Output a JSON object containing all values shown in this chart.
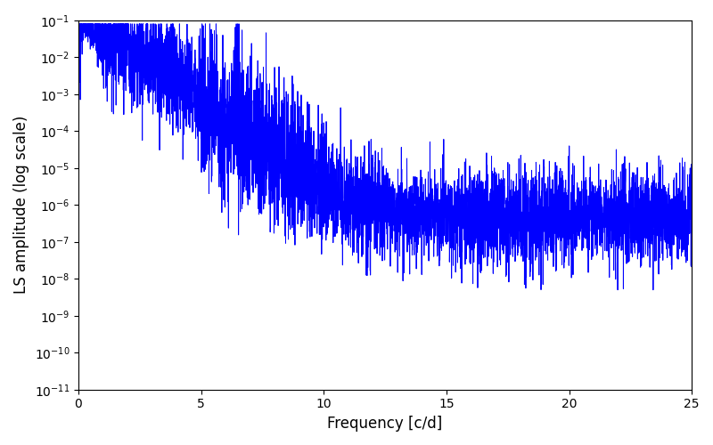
{
  "title": "",
  "xlabel": "Frequency [c/d]",
  "ylabel": "LS amplitude (log scale)",
  "line_color": "#0000ff",
  "line_width": 0.7,
  "xlim": [
    0,
    25
  ],
  "ylim_log_min": -11,
  "ylim_log_max": -1,
  "figsize": [
    8.0,
    5.0
  ],
  "dpi": 100,
  "bg_color": "#ffffff",
  "seed": 12345,
  "n_points": 5000,
  "freq_max": 25.0,
  "alpha": 3.5,
  "peak_amplitude": 0.05,
  "noise_sigma_low": 1.8,
  "noise_sigma_high": 2.5,
  "baseline_floor": 5e-07
}
